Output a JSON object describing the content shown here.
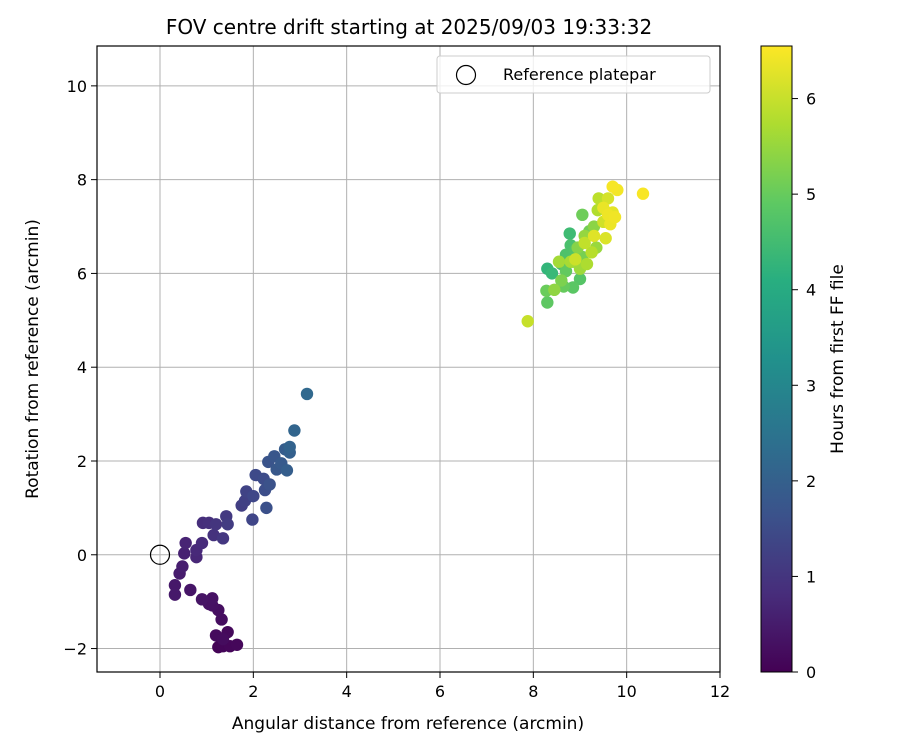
{
  "chart_data": {
    "type": "scatter",
    "title": "FOV centre drift starting at 2025/09/03 19:33:32",
    "xlabel": "Angular distance from reference (arcmin)",
    "ylabel": "Rotation from reference (arcmin)",
    "xlim": [
      -1.35,
      12
    ],
    "ylim": [
      -2.5,
      10.85
    ],
    "xticks": [
      0,
      2,
      4,
      6,
      8,
      10,
      12
    ],
    "yticks": [
      -2,
      0,
      2,
      4,
      6,
      8,
      10
    ],
    "grid": true,
    "legend": {
      "placement": "top-right",
      "entries": [
        "Reference platepar"
      ]
    },
    "reference_point": {
      "x": 0,
      "y": 0,
      "label": "Reference platepar"
    },
    "colorbar": {
      "label": "Hours from first FF file",
      "range": [
        0,
        6.55
      ],
      "ticks": [
        0,
        1,
        2,
        3,
        4,
        5,
        6
      ],
      "colormap": "viridis"
    },
    "series": [
      {
        "points": [
          {
            "x": 1.25,
            "y": -1.97,
            "c": 0.05
          },
          {
            "x": 1.35,
            "y": -1.95,
            "c": 0.08
          },
          {
            "x": 1.5,
            "y": -1.95,
            "c": 0.1
          },
          {
            "x": 1.65,
            "y": -1.92,
            "c": 0.12
          },
          {
            "x": 1.45,
            "y": -1.65,
            "c": 0.15
          },
          {
            "x": 1.2,
            "y": -1.72,
            "c": 0.18
          },
          {
            "x": 1.35,
            "y": -1.8,
            "c": 0.2
          },
          {
            "x": 1.32,
            "y": -1.38,
            "c": 0.22
          },
          {
            "x": 1.25,
            "y": -1.18,
            "c": 0.25
          },
          {
            "x": 1.12,
            "y": -1.08,
            "c": 0.28
          },
          {
            "x": 1.05,
            "y": -1.05,
            "c": 0.3
          },
          {
            "x": 1.12,
            "y": -0.93,
            "c": 0.32
          },
          {
            "x": 0.9,
            "y": -0.95,
            "c": 0.35
          },
          {
            "x": 0.65,
            "y": -0.75,
            "c": 0.38
          },
          {
            "x": 0.32,
            "y": -0.65,
            "c": 0.42
          },
          {
            "x": 0.32,
            "y": -0.85,
            "c": 0.45
          },
          {
            "x": 0.42,
            "y": -0.4,
            "c": 0.5
          },
          {
            "x": 0.48,
            "y": -0.25,
            "c": 0.55
          },
          {
            "x": 0.52,
            "y": 0.03,
            "c": 0.6
          },
          {
            "x": 0.55,
            "y": 0.25,
            "c": 0.65
          },
          {
            "x": 0.78,
            "y": -0.05,
            "c": 0.7
          },
          {
            "x": 0.78,
            "y": 0.1,
            "c": 0.75
          },
          {
            "x": 0.9,
            "y": 0.25,
            "c": 0.8
          },
          {
            "x": 0.92,
            "y": 0.68,
            "c": 0.85
          },
          {
            "x": 1.05,
            "y": 0.68,
            "c": 0.9
          },
          {
            "x": 1.15,
            "y": 0.42,
            "c": 0.95
          },
          {
            "x": 1.2,
            "y": 0.65,
            "c": 1.0
          },
          {
            "x": 1.35,
            "y": 0.35,
            "c": 1.05
          },
          {
            "x": 1.42,
            "y": 0.82,
            "c": 1.1
          },
          {
            "x": 1.45,
            "y": 0.65,
            "c": 1.15
          },
          {
            "x": 1.75,
            "y": 1.05,
            "c": 1.2
          },
          {
            "x": 1.82,
            "y": 1.15,
            "c": 1.25
          },
          {
            "x": 1.85,
            "y": 1.35,
            "c": 1.3
          },
          {
            "x": 1.98,
            "y": 0.75,
            "c": 1.35
          },
          {
            "x": 2.0,
            "y": 1.25,
            "c": 1.4
          },
          {
            "x": 2.05,
            "y": 1.7,
            "c": 1.45
          },
          {
            "x": 2.22,
            "y": 1.62,
            "c": 1.5
          },
          {
            "x": 2.25,
            "y": 1.38,
            "c": 1.55
          },
          {
            "x": 2.28,
            "y": 1.0,
            "c": 1.6
          },
          {
            "x": 2.35,
            "y": 1.5,
            "c": 1.65
          },
          {
            "x": 2.32,
            "y": 1.98,
            "c": 1.7
          },
          {
            "x": 2.45,
            "y": 2.1,
            "c": 1.75
          },
          {
            "x": 2.5,
            "y": 1.82,
            "c": 1.8
          },
          {
            "x": 2.6,
            "y": 1.95,
            "c": 1.85
          },
          {
            "x": 2.68,
            "y": 2.25,
            "c": 1.9
          },
          {
            "x": 2.72,
            "y": 1.8,
            "c": 1.95
          },
          {
            "x": 2.78,
            "y": 2.18,
            "c": 2.0
          },
          {
            "x": 2.78,
            "y": 2.3,
            "c": 2.05
          },
          {
            "x": 2.88,
            "y": 2.65,
            "c": 2.1
          },
          {
            "x": 3.15,
            "y": 3.43,
            "c": 2.2
          },
          {
            "x": 8.3,
            "y": 6.1,
            "c": 4.3
          },
          {
            "x": 8.4,
            "y": 6.0,
            "c": 4.4
          },
          {
            "x": 8.78,
            "y": 6.85,
            "c": 4.5
          },
          {
            "x": 8.6,
            "y": 6.2,
            "c": 4.6
          },
          {
            "x": 8.8,
            "y": 6.6,
            "c": 4.65
          },
          {
            "x": 8.7,
            "y": 6.4,
            "c": 4.7
          },
          {
            "x": 8.9,
            "y": 6.5,
            "c": 4.75
          },
          {
            "x": 9.0,
            "y": 5.88,
            "c": 4.8
          },
          {
            "x": 8.85,
            "y": 5.7,
            "c": 4.85
          },
          {
            "x": 8.3,
            "y": 5.38,
            "c": 4.9
          },
          {
            "x": 8.7,
            "y": 6.05,
            "c": 4.95
          },
          {
            "x": 8.65,
            "y": 5.72,
            "c": 5.0
          },
          {
            "x": 8.28,
            "y": 5.63,
            "c": 5.05
          },
          {
            "x": 9.05,
            "y": 7.25,
            "c": 5.1
          },
          {
            "x": 9.2,
            "y": 6.9,
            "c": 5.15
          },
          {
            "x": 9.05,
            "y": 6.35,
            "c": 5.2
          },
          {
            "x": 8.6,
            "y": 5.85,
            "c": 5.25
          },
          {
            "x": 8.85,
            "y": 6.25,
            "c": 5.3
          },
          {
            "x": 8.95,
            "y": 6.55,
            "c": 5.35
          },
          {
            "x": 9.3,
            "y": 7.0,
            "c": 5.4
          },
          {
            "x": 8.45,
            "y": 5.65,
            "c": 5.45
          },
          {
            "x": 9.1,
            "y": 6.8,
            "c": 5.5
          },
          {
            "x": 9.35,
            "y": 6.55,
            "c": 5.55
          },
          {
            "x": 9.0,
            "y": 6.1,
            "c": 5.6
          },
          {
            "x": 8.55,
            "y": 6.25,
            "c": 5.65
          },
          {
            "x": 8.8,
            "y": 6.25,
            "c": 5.7
          },
          {
            "x": 9.15,
            "y": 6.2,
            "c": 5.75
          },
          {
            "x": 9.38,
            "y": 7.35,
            "c": 5.8
          },
          {
            "x": 9.25,
            "y": 6.45,
            "c": 5.85
          },
          {
            "x": 9.4,
            "y": 7.6,
            "c": 5.9
          },
          {
            "x": 9.1,
            "y": 6.65,
            "c": 5.95
          },
          {
            "x": 7.88,
            "y": 4.98,
            "c": 6.0
          },
          {
            "x": 8.9,
            "y": 6.3,
            "c": 6.05
          },
          {
            "x": 9.5,
            "y": 7.1,
            "c": 6.1
          },
          {
            "x": 9.6,
            "y": 7.6,
            "c": 6.15
          },
          {
            "x": 9.55,
            "y": 6.75,
            "c": 6.2
          },
          {
            "x": 9.3,
            "y": 6.8,
            "c": 6.25
          },
          {
            "x": 9.7,
            "y": 7.3,
            "c": 6.3
          },
          {
            "x": 9.5,
            "y": 7.4,
            "c": 6.35
          },
          {
            "x": 9.65,
            "y": 7.05,
            "c": 6.38
          },
          {
            "x": 9.6,
            "y": 7.25,
            "c": 6.4
          },
          {
            "x": 9.75,
            "y": 7.2,
            "c": 6.42
          },
          {
            "x": 9.8,
            "y": 7.78,
            "c": 6.45
          },
          {
            "x": 9.7,
            "y": 7.85,
            "c": 6.48
          },
          {
            "x": 10.35,
            "y": 7.7,
            "c": 6.5
          }
        ]
      }
    ]
  }
}
